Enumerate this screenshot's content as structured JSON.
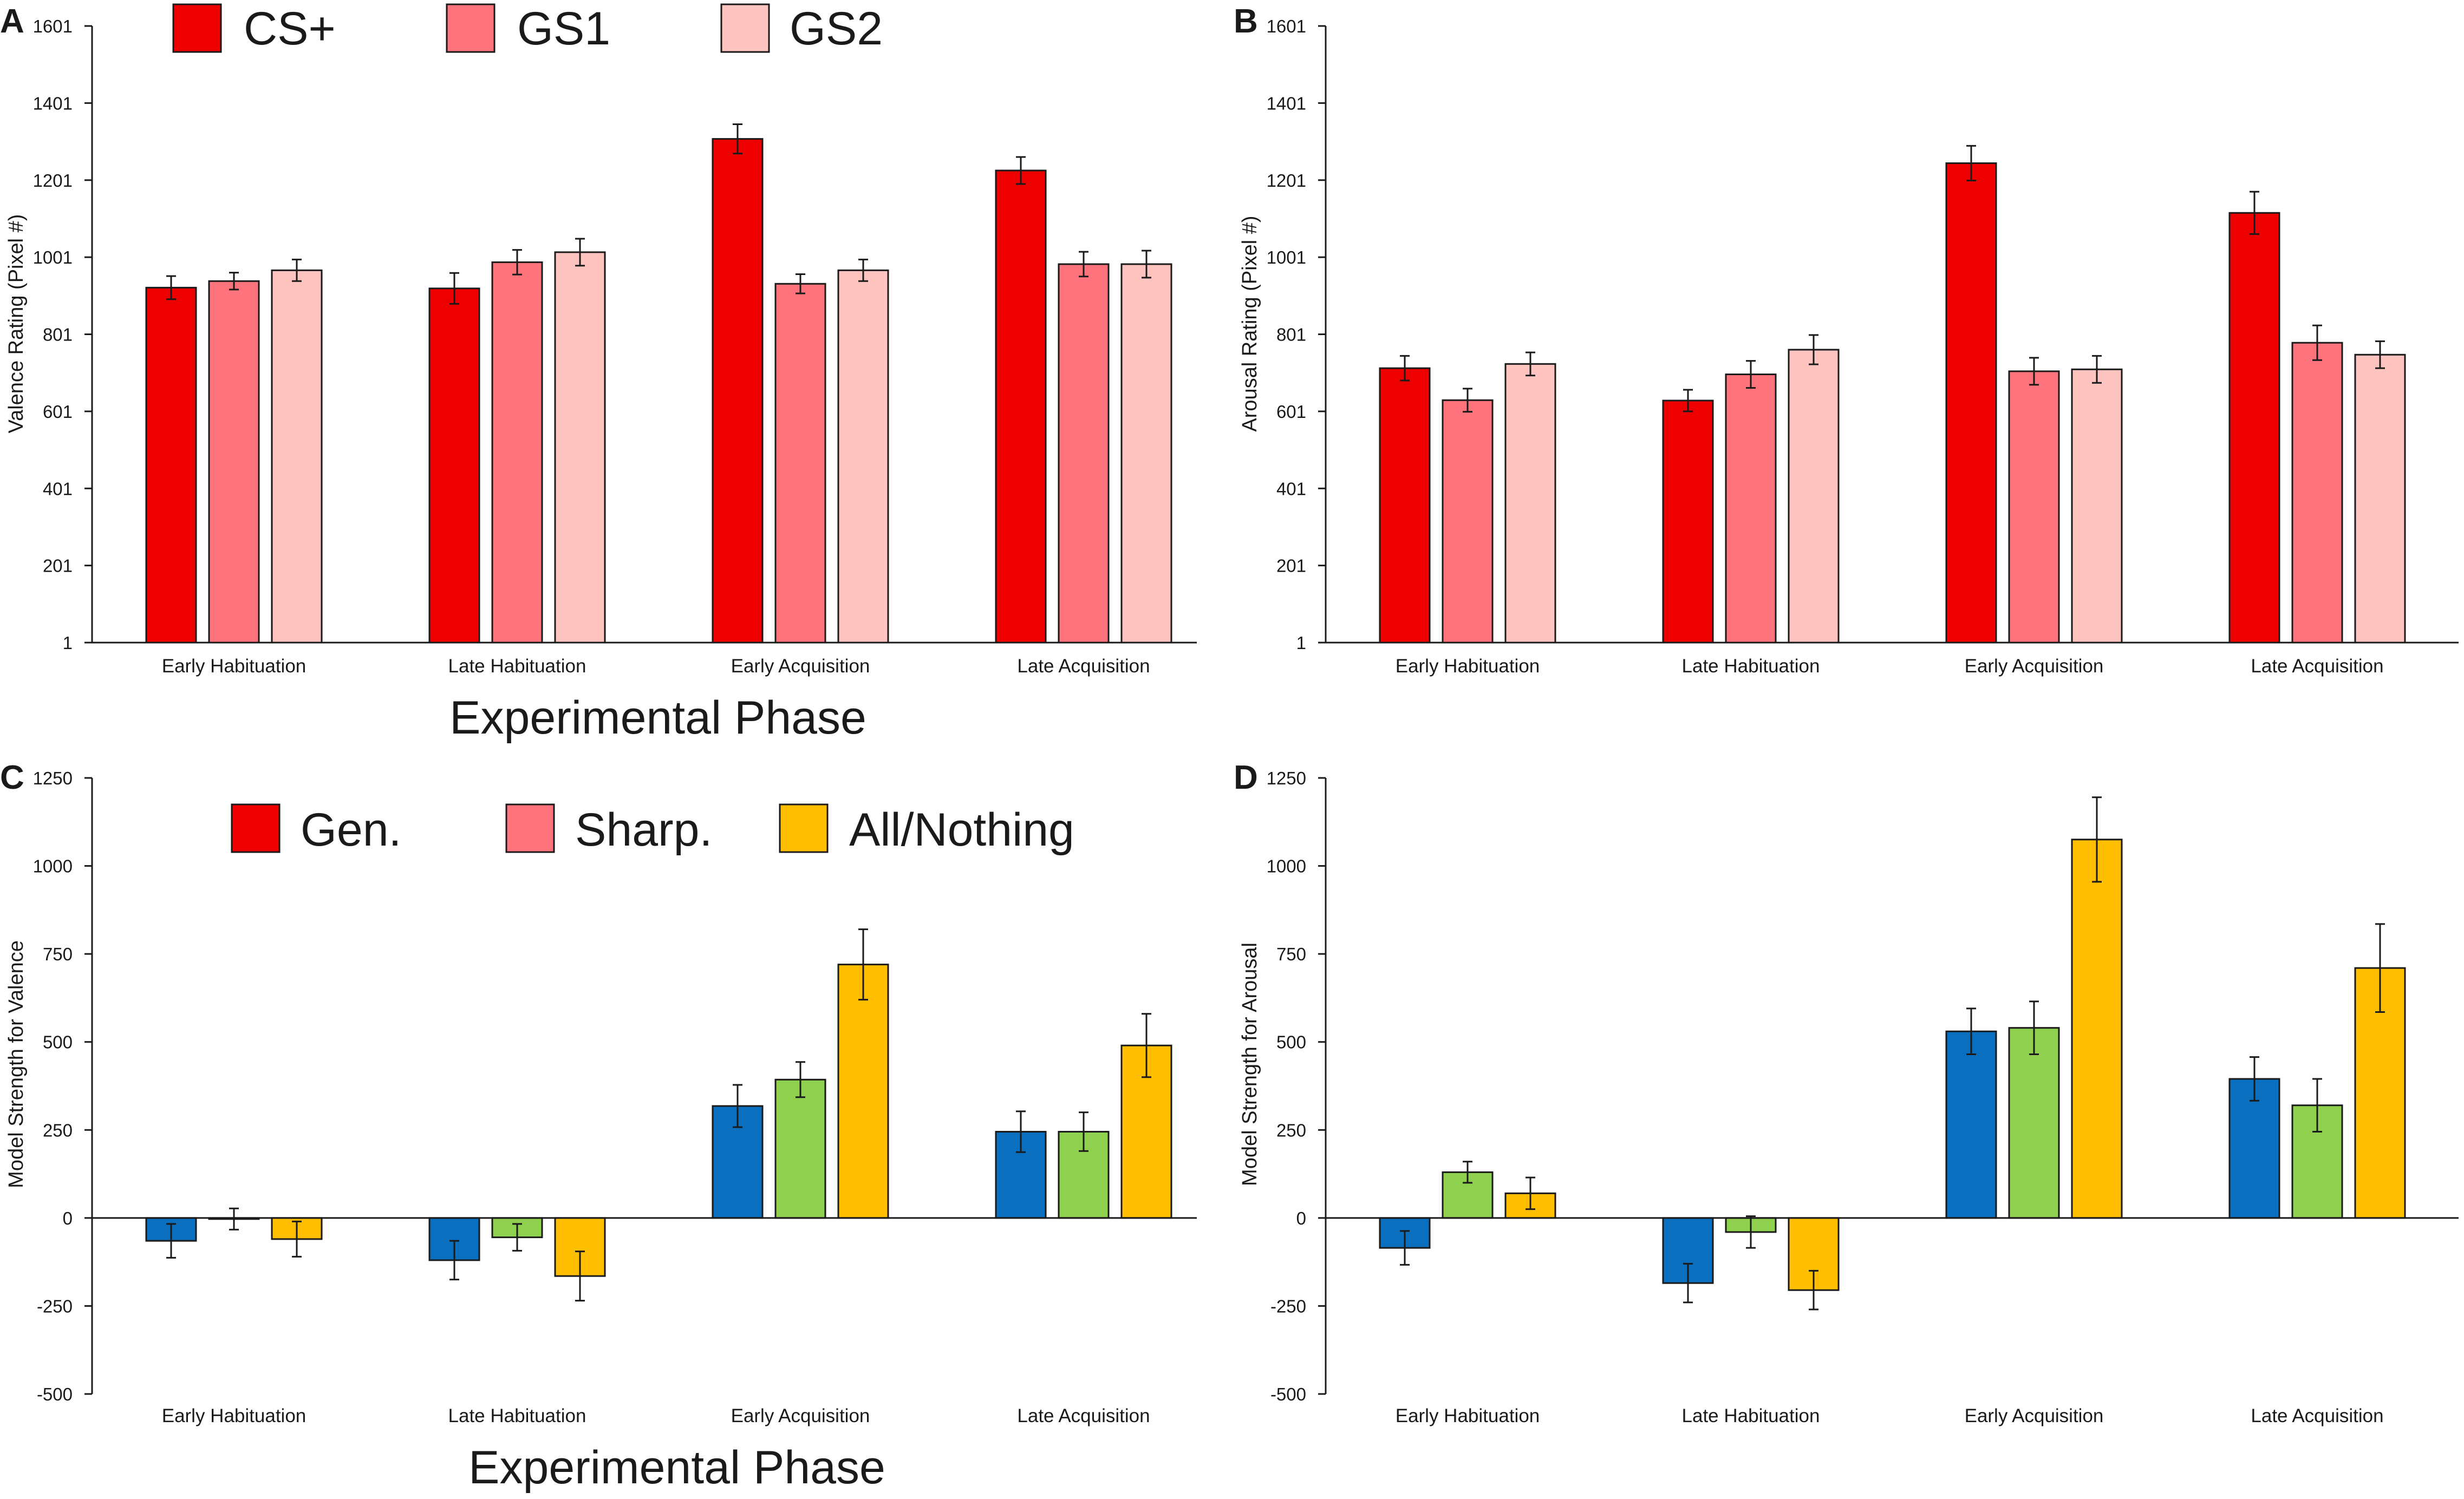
{
  "figure": {
    "x_axis_title": "Experimental Phase"
  },
  "colors": {
    "CS+": "#ee0000",
    "GS1": "#ff737c",
    "GS2": "#ffc4c0",
    "Gen.": "#0a6fbf",
    "Sharp.": "#8fd14f",
    "All/Nothing": "#ffbf00"
  },
  "legends": {
    "top": [
      {
        "key": "CS+",
        "label": "CS+",
        "color_key": "CS+"
      },
      {
        "key": "GS1",
        "label": "GS1",
        "color_key": "GS1"
      },
      {
        "key": "GS2",
        "label": "GS2",
        "color_key": "GS2"
      }
    ],
    "bottom": [
      {
        "key": "Gen.",
        "label": "Gen.",
        "color_key": "Gen."
      },
      {
        "key": "Sharp.",
        "label": "Sharp.",
        "color_key": "Sharp."
      },
      {
        "key": "All/Nothing",
        "label": "All/Nothing",
        "color_key": "All/Nothing"
      }
    ]
  },
  "chart_data": [
    {
      "panel": "A",
      "type": "bar",
      "ylabel": "Valence Rating (Pixel #)",
      "ylim": [
        1,
        1601
      ],
      "yticks": [
        1,
        201,
        401,
        601,
        801,
        1001,
        1201,
        1401,
        1601
      ],
      "categories": [
        "Early Habituation",
        "Late Habituation",
        "Early Acquisition",
        "Late Acquisition"
      ],
      "series": [
        {
          "name": "CS+",
          "color_key": "CS+",
          "values": [
            922,
            920,
            1308,
            1226
          ],
          "errors": [
            30,
            40,
            38,
            35
          ]
        },
        {
          "name": "GS1",
          "color_key": "GS1",
          "values": [
            939,
            988,
            932,
            983
          ],
          "errors": [
            22,
            32,
            25,
            32
          ]
        },
        {
          "name": "GS2",
          "color_key": "GS2",
          "values": [
            967,
            1014,
            967,
            983
          ],
          "errors": [
            28,
            35,
            28,
            35
          ]
        }
      ]
    },
    {
      "panel": "B",
      "type": "bar",
      "ylabel": "Arousal Rating (Pixel #)",
      "ylim": [
        1,
        1601
      ],
      "yticks": [
        1,
        201,
        401,
        601,
        801,
        1001,
        1201,
        1401,
        1601
      ],
      "categories": [
        "Early Habituation",
        "Late Habituation",
        "Early Acquisition",
        "Late Acquisition"
      ],
      "series": [
        {
          "name": "CS+",
          "color_key": "CS+",
          "values": [
            713,
            629,
            1245,
            1116
          ],
          "errors": [
            32,
            28,
            45,
            55
          ]
        },
        {
          "name": "GS1",
          "color_key": "GS1",
          "values": [
            630,
            697,
            705,
            779
          ],
          "errors": [
            30,
            35,
            35,
            45
          ]
        },
        {
          "name": "GS2",
          "color_key": "GS2",
          "values": [
            724,
            761,
            710,
            748
          ],
          "errors": [
            30,
            38,
            35,
            35
          ]
        }
      ]
    },
    {
      "panel": "C",
      "type": "bar",
      "ylabel": "Model Strength for Valence",
      "ylim": [
        -500,
        1250
      ],
      "yticks": [
        -500,
        -250,
        0,
        250,
        500,
        750,
        1000,
        1250
      ],
      "categories": [
        "Early Habituation",
        "Late Habituation",
        "Early Acquisition",
        "Late Acquisition"
      ],
      "series": [
        {
          "name": "Gen.",
          "color_key": "Gen.",
          "values": [
            -65,
            -120,
            318,
            245
          ],
          "errors": [
            48,
            55,
            60,
            58
          ]
        },
        {
          "name": "Sharp.",
          "color_key": "Sharp.",
          "values": [
            -3,
            -55,
            393,
            245
          ],
          "errors": [
            30,
            38,
            50,
            55
          ]
        },
        {
          "name": "All/Nothing",
          "color_key": "All/Nothing",
          "values": [
            -60,
            -165,
            720,
            490
          ],
          "errors": [
            50,
            70,
            100,
            90
          ]
        }
      ]
    },
    {
      "panel": "D",
      "type": "bar",
      "ylabel": "Model Strength for Arousal",
      "ylim": [
        -500,
        1250
      ],
      "yticks": [
        -500,
        -250,
        0,
        250,
        500,
        750,
        1000,
        1250
      ],
      "categories": [
        "Early Habituation",
        "Late Habituation",
        "Early Acquisition",
        "Late Acquisition"
      ],
      "series": [
        {
          "name": "Gen.",
          "color_key": "Gen.",
          "values": [
            -85,
            -185,
            530,
            395
          ],
          "errors": [
            48,
            55,
            65,
            62
          ]
        },
        {
          "name": "Sharp.",
          "color_key": "Sharp.",
          "values": [
            130,
            -40,
            540,
            320
          ],
          "errors": [
            30,
            45,
            75,
            75
          ]
        },
        {
          "name": "All/Nothing",
          "color_key": "All/Nothing",
          "values": [
            70,
            -205,
            1075,
            710
          ],
          "errors": [
            45,
            55,
            120,
            125
          ]
        }
      ]
    }
  ]
}
